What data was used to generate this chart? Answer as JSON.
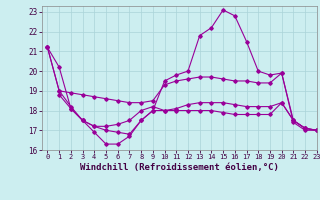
{
  "background_color": "#cceef0",
  "grid_color": "#aad4d8",
  "line_color": "#990099",
  "xlim": [
    -0.5,
    23
  ],
  "ylim": [
    16,
    23.3
  ],
  "yticks": [
    16,
    17,
    18,
    19,
    20,
    21,
    22,
    23
  ],
  "xticks": [
    0,
    1,
    2,
    3,
    4,
    5,
    6,
    7,
    8,
    9,
    10,
    11,
    12,
    13,
    14,
    15,
    16,
    17,
    18,
    19,
    20,
    21,
    22,
    23
  ],
  "xlabel": "Windchill (Refroidissement éolien,°C)",
  "series": [
    {
      "x": [
        0,
        1,
        2,
        3,
        4,
        5,
        6,
        7,
        8,
        9,
        10,
        11,
        12,
        13,
        14,
        15,
        16,
        17,
        18,
        19,
        20,
        21,
        22,
        23
      ],
      "y": [
        21.2,
        20.2,
        18.1,
        17.5,
        16.9,
        16.3,
        16.3,
        16.7,
        17.5,
        18.0,
        19.5,
        19.8,
        20.0,
        21.8,
        22.2,
        23.1,
        22.8,
        21.5,
        20.0,
        19.8,
        19.9,
        17.4,
        17.0,
        17.0
      ]
    },
    {
      "x": [
        0,
        1,
        2,
        3,
        4,
        5,
        6,
        7,
        8,
        9,
        10,
        11,
        12,
        13,
        14,
        15,
        16,
        17,
        18,
        19,
        20,
        21,
        22,
        23
      ],
      "y": [
        21.2,
        19.0,
        18.9,
        18.8,
        18.7,
        18.6,
        18.5,
        18.4,
        18.4,
        18.5,
        19.3,
        19.5,
        19.6,
        19.7,
        19.7,
        19.6,
        19.5,
        19.5,
        19.4,
        19.4,
        19.9,
        17.5,
        17.1,
        17.0
      ]
    },
    {
      "x": [
        0,
        1,
        2,
        3,
        4,
        5,
        6,
        7,
        8,
        9,
        10,
        11,
        12,
        13,
        14,
        15,
        16,
        17,
        18,
        19,
        20,
        21,
        22,
        23
      ],
      "y": [
        21.2,
        19.0,
        18.2,
        17.5,
        17.2,
        17.0,
        16.9,
        16.8,
        17.5,
        18.0,
        18.0,
        18.1,
        18.3,
        18.4,
        18.4,
        18.4,
        18.3,
        18.2,
        18.2,
        18.2,
        18.4,
        17.5,
        17.1,
        17.0
      ]
    },
    {
      "x": [
        1,
        2,
        3,
        4,
        5,
        6,
        7,
        8,
        9,
        10,
        11,
        12,
        13,
        14,
        15,
        16,
        17,
        18,
        19,
        20,
        21,
        22,
        23
      ],
      "y": [
        18.8,
        18.1,
        17.5,
        17.2,
        17.2,
        17.3,
        17.5,
        18.0,
        18.2,
        18.0,
        18.0,
        18.0,
        18.0,
        18.0,
        17.9,
        17.8,
        17.8,
        17.8,
        17.8,
        18.4,
        17.5,
        17.1,
        17.0
      ]
    }
  ]
}
